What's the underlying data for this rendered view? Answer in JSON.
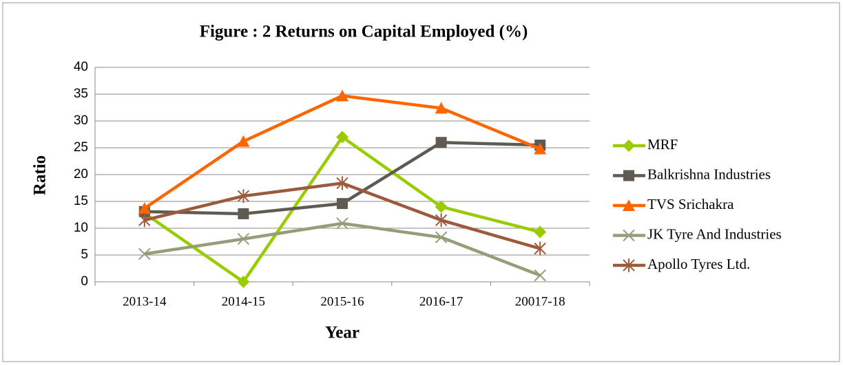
{
  "chart_data": {
    "type": "line",
    "title": "Figure : 2 Returns on Capital Employed (%)",
    "x_label": "Year",
    "y_label": "Ratio",
    "categories": [
      "2013-14",
      "2014-15",
      "2015-16",
      "2016-17",
      "20017-18"
    ],
    "ylim": [
      0,
      40
    ],
    "yticks": [
      0,
      5,
      10,
      15,
      20,
      25,
      30,
      35,
      40
    ],
    "grid": true,
    "legend": "right",
    "series": [
      {
        "name": "MRF",
        "color": "#99cc00",
        "marker": "diamond",
        "values": [
          12.8,
          0,
          27,
          14,
          9.3
        ]
      },
      {
        "name": "Balkrishna Industries",
        "color": "#5f5a52",
        "marker": "square",
        "values": [
          13.1,
          12.7,
          14.6,
          26,
          25.5
        ]
      },
      {
        "name": "TVS Srichakra",
        "color": "#ff6600",
        "marker": "triangle",
        "values": [
          13.7,
          26.2,
          34.7,
          32.4,
          24.8
        ]
      },
      {
        "name": "JK Tyre And Industries",
        "color": "#939f78",
        "marker": "x",
        "values": [
          5.2,
          8,
          10.9,
          8.3,
          1.2
        ]
      },
      {
        "name": "Apollo Tyres Ltd.",
        "color": "#9c5a3c",
        "marker": "star",
        "values": [
          11.5,
          16,
          18.4,
          11.5,
          6.2
        ]
      }
    ]
  }
}
